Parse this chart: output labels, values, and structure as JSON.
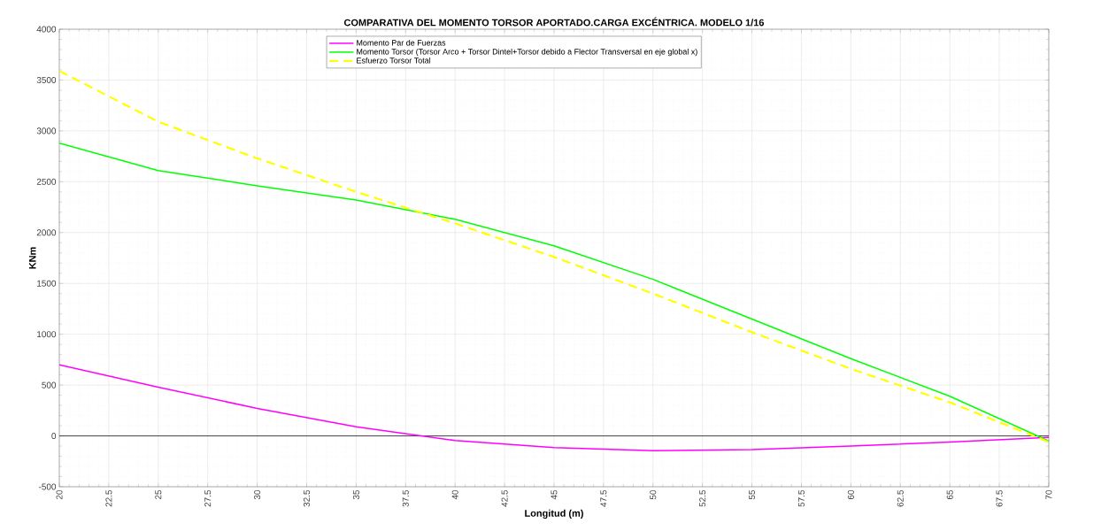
{
  "chart_data": {
    "type": "line",
    "title": "COMPARATIVA DEL MOMENTO TORSOR APORTADO.CARGA EXCÉNTRICA. MODELO 1/16",
    "xlabel": "Longitud (m)",
    "ylabel": "KNm",
    "x": [
      20,
      25,
      30,
      35,
      40,
      45,
      50,
      55,
      60,
      65,
      70
    ],
    "series": [
      {
        "name": "Momento Par de Fuerzas",
        "color": "#ff00ff",
        "line_style": "solid",
        "values": [
          700,
          480,
          270,
          90,
          -45,
          -115,
          -145,
          -135,
          -100,
          -60,
          -15
        ]
      },
      {
        "name": "Momento Torsor (Torsor Arco + Torsor Dintel+Torsor debido a Flector Transversal en eje global x)",
        "color": "#00ff00",
        "line_style": "solid",
        "values": [
          2880,
          2610,
          2460,
          2320,
          2130,
          1870,
          1540,
          1150,
          760,
          390,
          -50
        ]
      },
      {
        "name": "Esfuerzo Torsor Total",
        "color": "#ffff00",
        "line_style": "dashed",
        "values": [
          3590,
          3090,
          2730,
          2400,
          2090,
          1760,
          1400,
          1020,
          660,
          330,
          -60
        ]
      }
    ],
    "xlim": [
      20,
      70
    ],
    "ylim": [
      -500,
      4000
    ],
    "xticks": [
      20,
      22.5,
      25,
      27.5,
      30,
      32.5,
      35,
      37.5,
      40,
      42.5,
      45,
      47.5,
      50,
      52.5,
      55,
      57.5,
      60,
      62.5,
      65,
      67.5,
      70
    ],
    "yticks": [
      -500,
      0,
      500,
      1000,
      1500,
      2000,
      2500,
      3000,
      3500,
      4000
    ],
    "ref_lines": [
      {
        "axis": "y",
        "value": 0,
        "color": "#333333"
      }
    ],
    "grid": true,
    "legend": "top",
    "marker": "none"
  }
}
